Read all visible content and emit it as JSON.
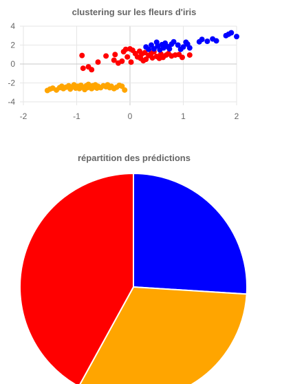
{
  "chart_data": [
    {
      "type": "scatter",
      "title": "clustering sur les fleurs d'iris",
      "xlabel": "",
      "ylabel": "",
      "xlim": [
        -2,
        2
      ],
      "ylim": [
        -4,
        4
      ],
      "x_ticks": [
        "-2",
        "-1",
        "0",
        "1",
        "2"
      ],
      "y_ticks": [
        "4",
        "2",
        "0",
        "-2",
        "-4"
      ],
      "grid": true,
      "series": [
        {
          "color": "#ffa500",
          "points": [
            [
              -1.55,
              -2.8
            ],
            [
              -1.5,
              -2.65
            ],
            [
              -1.45,
              -2.55
            ],
            [
              -1.38,
              -2.75
            ],
            [
              -1.32,
              -2.5
            ],
            [
              -1.28,
              -2.35
            ],
            [
              -1.25,
              -2.6
            ],
            [
              -1.2,
              -2.45
            ],
            [
              -1.15,
              -2.3
            ],
            [
              -1.12,
              -2.65
            ],
            [
              -1.08,
              -2.4
            ],
            [
              -1.05,
              -2.2
            ],
            [
              -1.02,
              -2.55
            ],
            [
              -0.98,
              -2.35
            ],
            [
              -0.95,
              -2.6
            ],
            [
              -0.92,
              -2.25
            ],
            [
              -0.88,
              -2.45
            ],
            [
              -0.85,
              -2.7
            ],
            [
              -0.82,
              -2.3
            ],
            [
              -0.8,
              -2.5
            ],
            [
              -0.78,
              -2.15
            ],
            [
              -0.75,
              -2.4
            ],
            [
              -0.72,
              -2.6
            ],
            [
              -0.7,
              -2.3
            ],
            [
              -0.68,
              -2.45
            ],
            [
              -0.65,
              -2.2
            ],
            [
              -0.62,
              -2.55
            ],
            [
              -0.6,
              -2.35
            ],
            [
              -0.55,
              -2.5
            ],
            [
              -0.5,
              -2.3
            ],
            [
              -0.45,
              -2.4
            ],
            [
              -0.42,
              -2.2
            ],
            [
              -0.38,
              -2.5
            ],
            [
              -0.35,
              -2.35
            ],
            [
              -0.3,
              -2.6
            ],
            [
              -0.25,
              -2.45
            ],
            [
              -0.2,
              -2.25
            ],
            [
              -0.15,
              -2.35
            ],
            [
              -0.1,
              -2.75
            ]
          ]
        },
        {
          "color": "#ff0000",
          "points": [
            [
              -0.9,
              0.9
            ],
            [
              -0.88,
              -0.45
            ],
            [
              -0.78,
              -0.3
            ],
            [
              -0.72,
              -0.6
            ],
            [
              -0.6,
              0.2
            ],
            [
              -0.45,
              0.85
            ],
            [
              -0.3,
              0.4
            ],
            [
              -0.28,
              1.0
            ],
            [
              -0.22,
              0.1
            ],
            [
              -0.15,
              0.3
            ],
            [
              -0.12,
              1.3
            ],
            [
              -0.08,
              1.55
            ],
            [
              -0.05,
              0.75
            ],
            [
              0.0,
              1.6
            ],
            [
              0.02,
              0.2
            ],
            [
              0.05,
              1.45
            ],
            [
              0.1,
              1.1
            ],
            [
              0.14,
              0.75
            ],
            [
              0.18,
              1.35
            ],
            [
              0.2,
              0.6
            ],
            [
              0.22,
              1.05
            ],
            [
              0.25,
              0.35
            ],
            [
              0.28,
              1.2
            ],
            [
              0.3,
              0.5
            ],
            [
              0.35,
              0.9
            ],
            [
              0.4,
              1.15
            ],
            [
              0.42,
              0.65
            ],
            [
              0.45,
              1.3
            ],
            [
              0.5,
              0.8
            ],
            [
              0.55,
              0.6
            ],
            [
              0.58,
              1.05
            ],
            [
              0.62,
              0.7
            ],
            [
              0.68,
              0.95
            ],
            [
              0.72,
              1.1
            ],
            [
              0.78,
              0.85
            ],
            [
              0.85,
              0.95
            ],
            [
              0.92,
              1.0
            ],
            [
              0.98,
              0.7
            ],
            [
              1.12,
              0.95
            ]
          ]
        },
        {
          "color": "#0000ff",
          "points": [
            [
              0.3,
              1.8
            ],
            [
              0.35,
              1.55
            ],
            [
              0.4,
              2.0
            ],
            [
              0.45,
              1.6
            ],
            [
              0.5,
              2.3
            ],
            [
              0.52,
              1.9
            ],
            [
              0.56,
              1.5
            ],
            [
              0.6,
              2.05
            ],
            [
              0.63,
              1.7
            ],
            [
              0.66,
              2.2
            ],
            [
              0.7,
              1.85
            ],
            [
              0.74,
              1.6
            ],
            [
              0.78,
              2.1
            ],
            [
              0.82,
              2.35
            ],
            [
              0.9,
              2.0
            ],
            [
              0.95,
              1.55
            ],
            [
              1.0,
              1.8
            ],
            [
              1.05,
              2.3
            ],
            [
              1.08,
              2.1
            ],
            [
              1.12,
              1.7
            ],
            [
              1.3,
              2.35
            ],
            [
              1.35,
              2.6
            ],
            [
              1.45,
              2.4
            ],
            [
              1.55,
              2.65
            ],
            [
              1.62,
              2.45
            ],
            [
              1.8,
              3.0
            ],
            [
              1.85,
              3.15
            ],
            [
              1.9,
              3.3
            ],
            [
              2.0,
              2.9
            ]
          ]
        }
      ]
    },
    {
      "type": "pie",
      "title": "répartition des prédictions",
      "start_angle_deg": 0,
      "slices": [
        {
          "value": 26,
          "color": "#0000ff"
        },
        {
          "value": 32,
          "color": "#ffa500"
        },
        {
          "value": 42,
          "color": "#ff0000"
        }
      ]
    }
  ]
}
